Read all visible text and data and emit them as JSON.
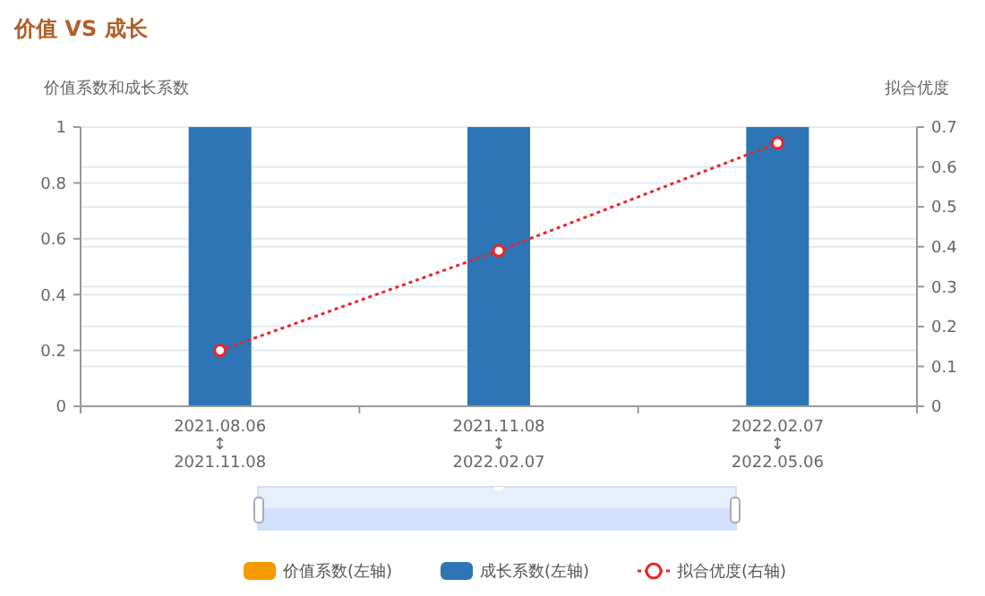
{
  "chart_data": {
    "type": "bar",
    "title": "价值 VS 成长",
    "ylabel": "价值系数和成长系数",
    "y2label": "拟合优度",
    "categories": [
      "2021.08.06\n↕\n2021.11.08",
      "2021.11.08\n↕\n2022.02.07",
      "2022.02.07\n↕\n2022.05.06"
    ],
    "series": [
      {
        "name": "价值系数(左轴)",
        "color": "#f59a00",
        "values": [
          null,
          null,
          null
        ]
      },
      {
        "name": "成长系数(左轴)",
        "color": "#2e75b6",
        "values": [
          1,
          1,
          1
        ]
      },
      {
        "name": "拟合优度(右轴)",
        "type": "line",
        "axis": "y2",
        "color": "#e8262a",
        "line_style": "dotted",
        "marker": "circle",
        "values": [
          0.14,
          0.39,
          0.66
        ]
      }
    ],
    "ylim": [
      0,
      1
    ],
    "yticks": [
      0,
      0.2,
      0.4,
      0.6,
      0.8,
      1
    ],
    "y2lim": [
      0,
      0.7
    ],
    "y2ticks": [
      0,
      0.1,
      0.2,
      0.3,
      0.4,
      0.5,
      0.6,
      0.7
    ],
    "grid": true,
    "legend": "bottom"
  }
}
